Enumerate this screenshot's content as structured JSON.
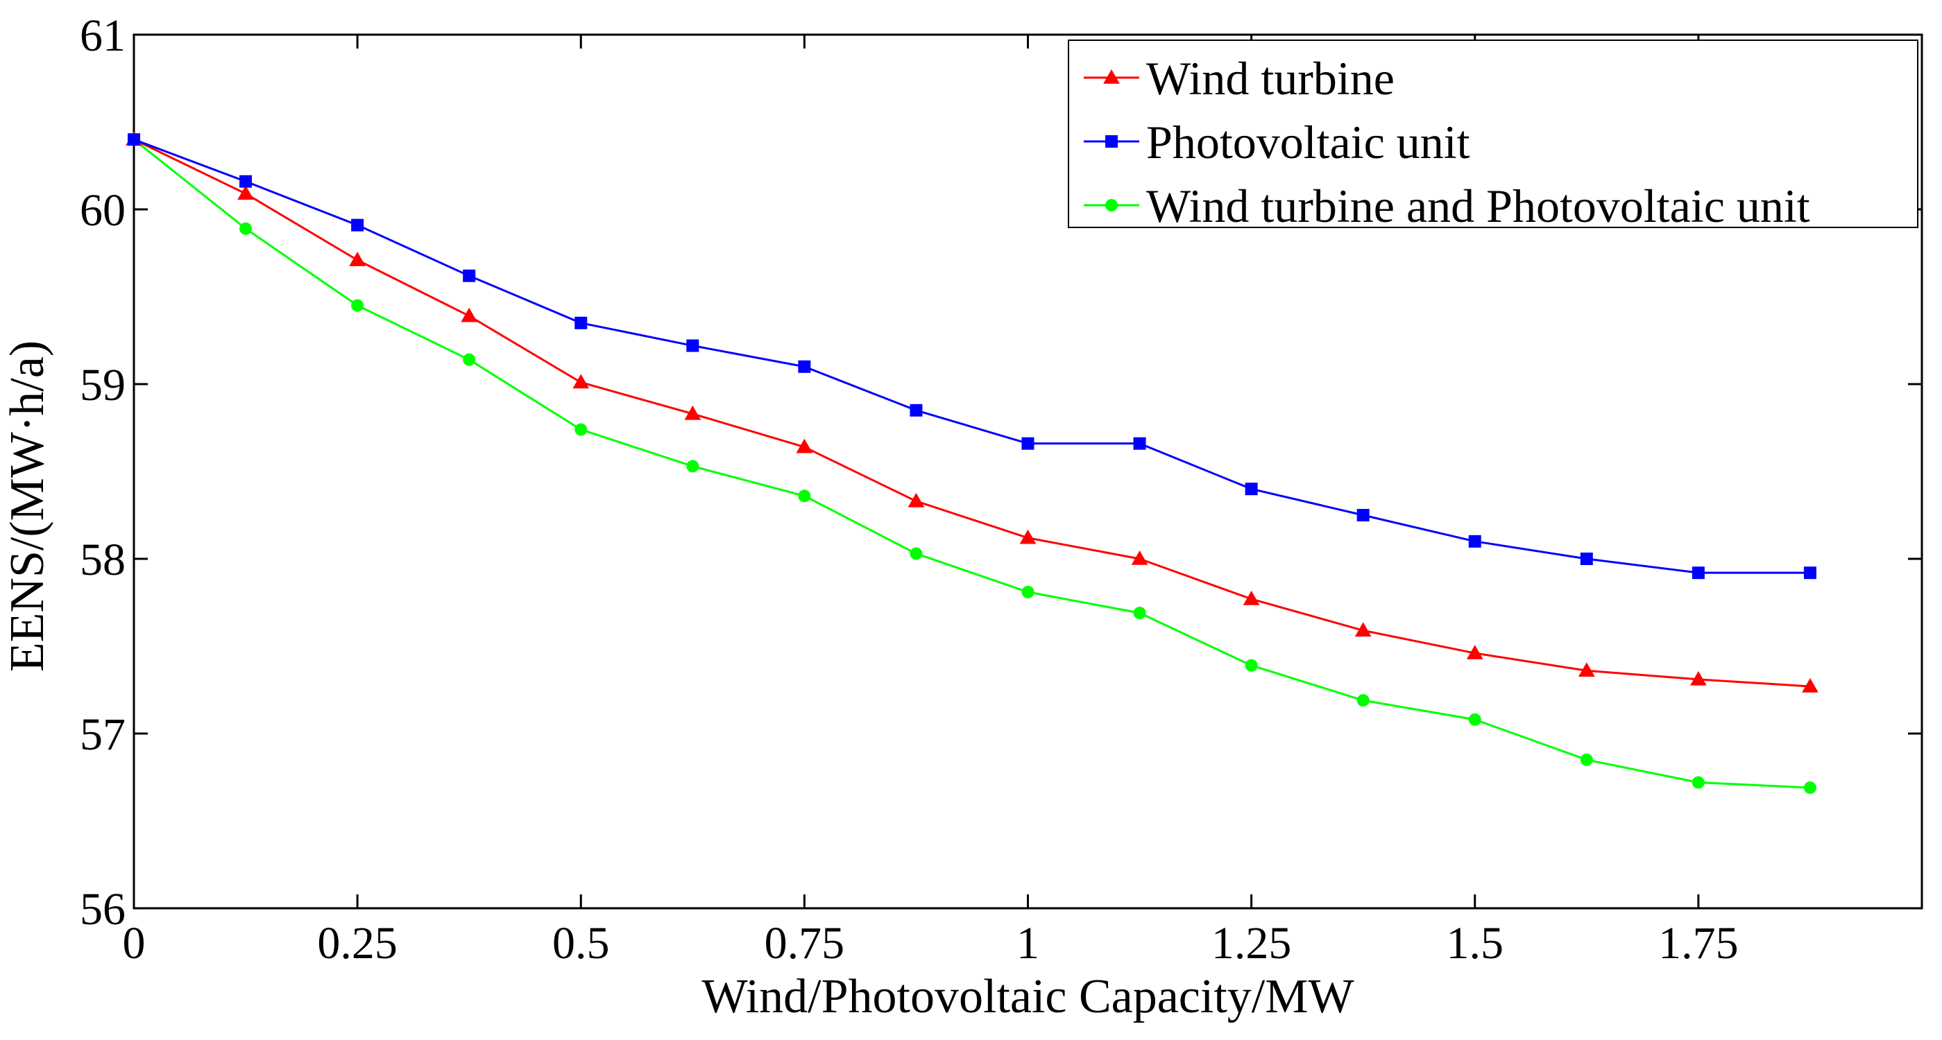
{
  "chart_data": {
    "type": "line",
    "title": "",
    "xlabel": "Wind/Photovoltaic Capacity/MW",
    "ylabel": "EENS/(MW·h/a)",
    "xlim": [
      0,
      2
    ],
    "ylim": [
      56,
      61
    ],
    "x_ticks": [
      0,
      0.25,
      0.5,
      0.75,
      1,
      1.25,
      1.5,
      1.75
    ],
    "x_tick_labels": [
      "0",
      "0.25",
      "0.5",
      "0.75",
      "1",
      "1.25",
      "1.5",
      "1.75"
    ],
    "y_ticks": [
      56,
      57,
      58,
      59,
      60,
      61
    ],
    "y_tick_labels": [
      "56",
      "57",
      "58",
      "59",
      "60",
      "61"
    ],
    "grid": false,
    "legend_position": "top-right",
    "x": [
      0,
      0.125,
      0.25,
      0.375,
      0.5,
      0.625,
      0.75,
      0.875,
      1,
      1.125,
      1.25,
      1.375,
      1.5,
      1.625,
      1.75,
      1.875
    ],
    "series": [
      {
        "name": "Wind turbine",
        "color": "#ff0000",
        "marker": "triangle",
        "values": [
          60.4,
          60.09,
          59.71,
          59.39,
          59.01,
          58.83,
          58.64,
          58.33,
          58.12,
          58.0,
          57.77,
          57.59,
          57.46,
          57.36,
          57.31,
          57.27
        ]
      },
      {
        "name": "Photovoltaic unit",
        "color": "#0000ff",
        "marker": "square",
        "values": [
          60.4,
          60.16,
          59.91,
          59.62,
          59.35,
          59.22,
          59.1,
          58.85,
          58.66,
          58.66,
          58.4,
          58.25,
          58.1,
          58.0,
          57.92,
          57.92
        ]
      },
      {
        "name": "Wind turbine and Photovoltaic unit",
        "color": "#00ff00",
        "marker": "circle",
        "values": [
          60.4,
          59.89,
          59.45,
          59.14,
          58.74,
          58.53,
          58.36,
          58.03,
          57.81,
          57.69,
          57.39,
          57.19,
          57.08,
          56.85,
          56.72,
          56.69
        ]
      }
    ]
  }
}
